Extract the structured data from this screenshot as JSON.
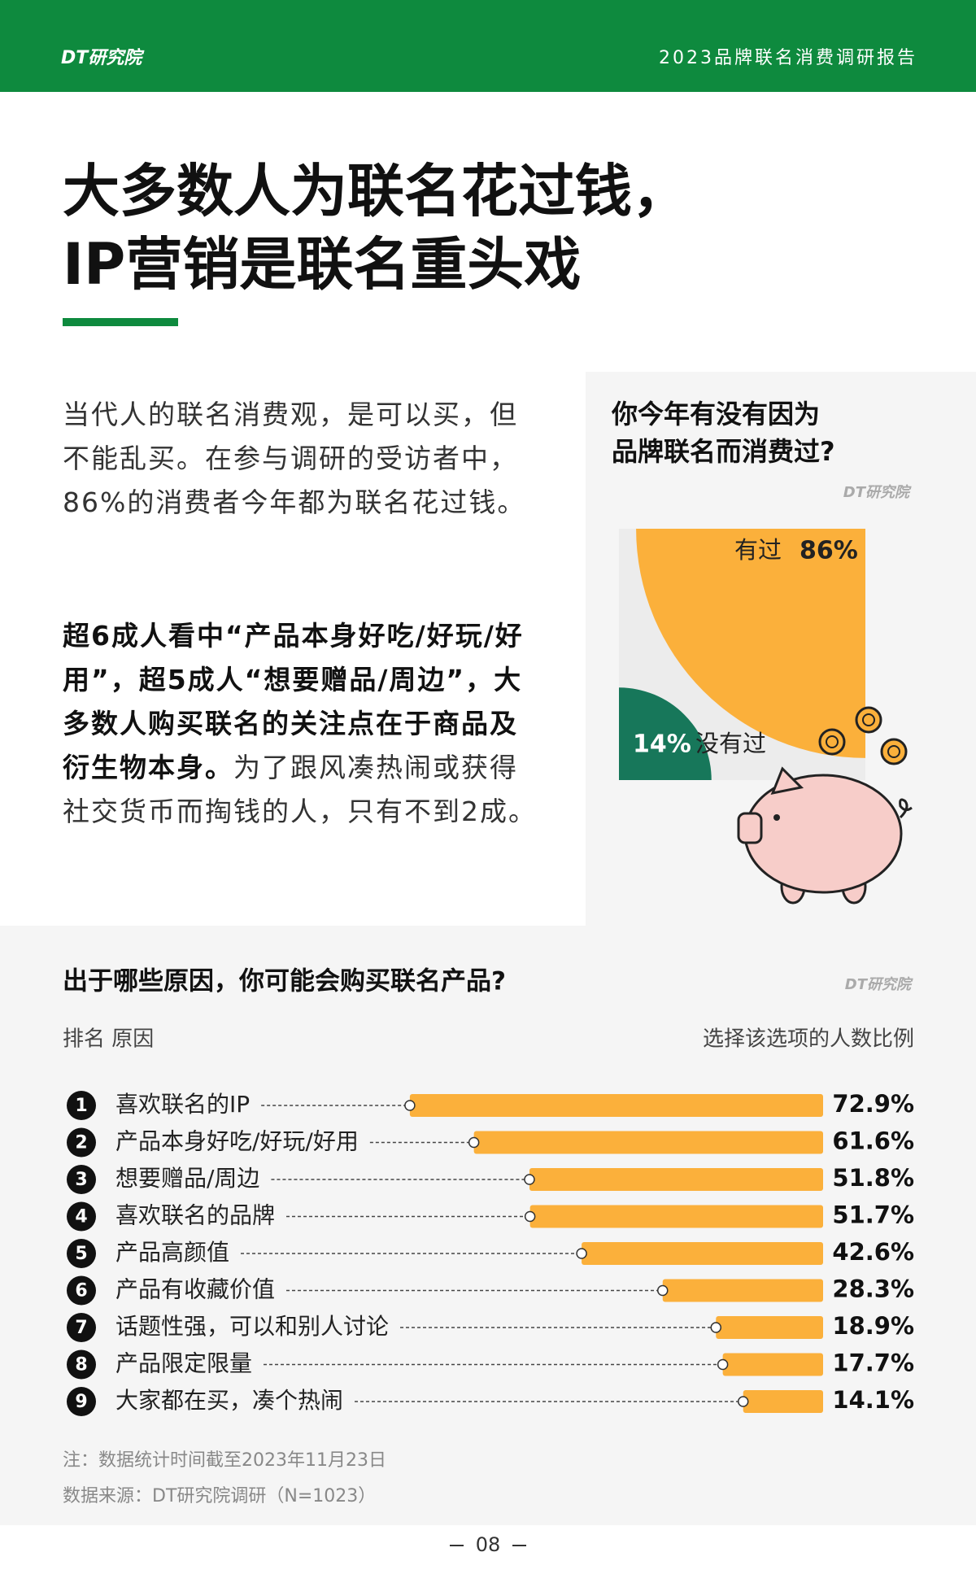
{
  "header": {
    "logo": "DT研究院",
    "report": "2023品牌联名消费调研报告"
  },
  "title": [
    "大多数人为联名花过钱，",
    "IP营销是联名重头戏"
  ],
  "body": {
    "paragraphs": [
      {
        "regular": "当代人的联名消费观，是可以买，但不能乱买。在参与调研的受访者中，86%的消费者今年都为联名花过钱。"
      },
      {
        "bold": "超6成人看中“产品本身好吃/好玩/好用”，超5成人“想要赠品/周边”，大多数人购买联名的关注点在于商品及衍生物本身。",
        "regular": "为了跟风凑热闹或获得社交货币而掏钱的人，只有不到2成。"
      }
    ]
  },
  "chart_data": [
    {
      "type": "pie",
      "title": [
        "你今年有没有因为",
        "品牌联名而消费过?"
      ],
      "logo": "DT研究院",
      "categories": [
        "有过",
        "没有过"
      ],
      "values": [
        86,
        14
      ],
      "value_labels": [
        "86%",
        "14%"
      ],
      "colors": [
        "#fbb03b",
        "#17775a"
      ]
    },
    {
      "type": "bar",
      "title": "出于哪些原因，你可能会购买联名产品?",
      "logo": "DT研究院",
      "header_left": "排名 原因",
      "header_right": "选择该选项的人数比例",
      "ranks": [
        1,
        2,
        3,
        4,
        5,
        6,
        7,
        8,
        9
      ],
      "categories": [
        "喜欢联名的IP",
        "产品本身好吃/好玩/好用",
        "想要赠品/周边",
        "喜欢联名的品牌",
        "产品高颜值",
        "产品有收藏价值",
        "话题性强，可以和别人讨论",
        "产品限定限量",
        "大家都在买，凑个热闹"
      ],
      "values": [
        72.9,
        61.6,
        51.8,
        51.7,
        42.6,
        28.3,
        18.9,
        17.7,
        14.1
      ],
      "value_labels": [
        "72.9%",
        "61.6%",
        "51.8%",
        "51.7%",
        "42.6%",
        "28.3%",
        "18.9%",
        "17.7%",
        "14.1%"
      ],
      "color": "#fbb03b"
    }
  ],
  "notes": [
    "注：数据统计时间截至2023年11月23日",
    "数据来源：DT研究院调研（N=1023）"
  ],
  "page_number": "08"
}
